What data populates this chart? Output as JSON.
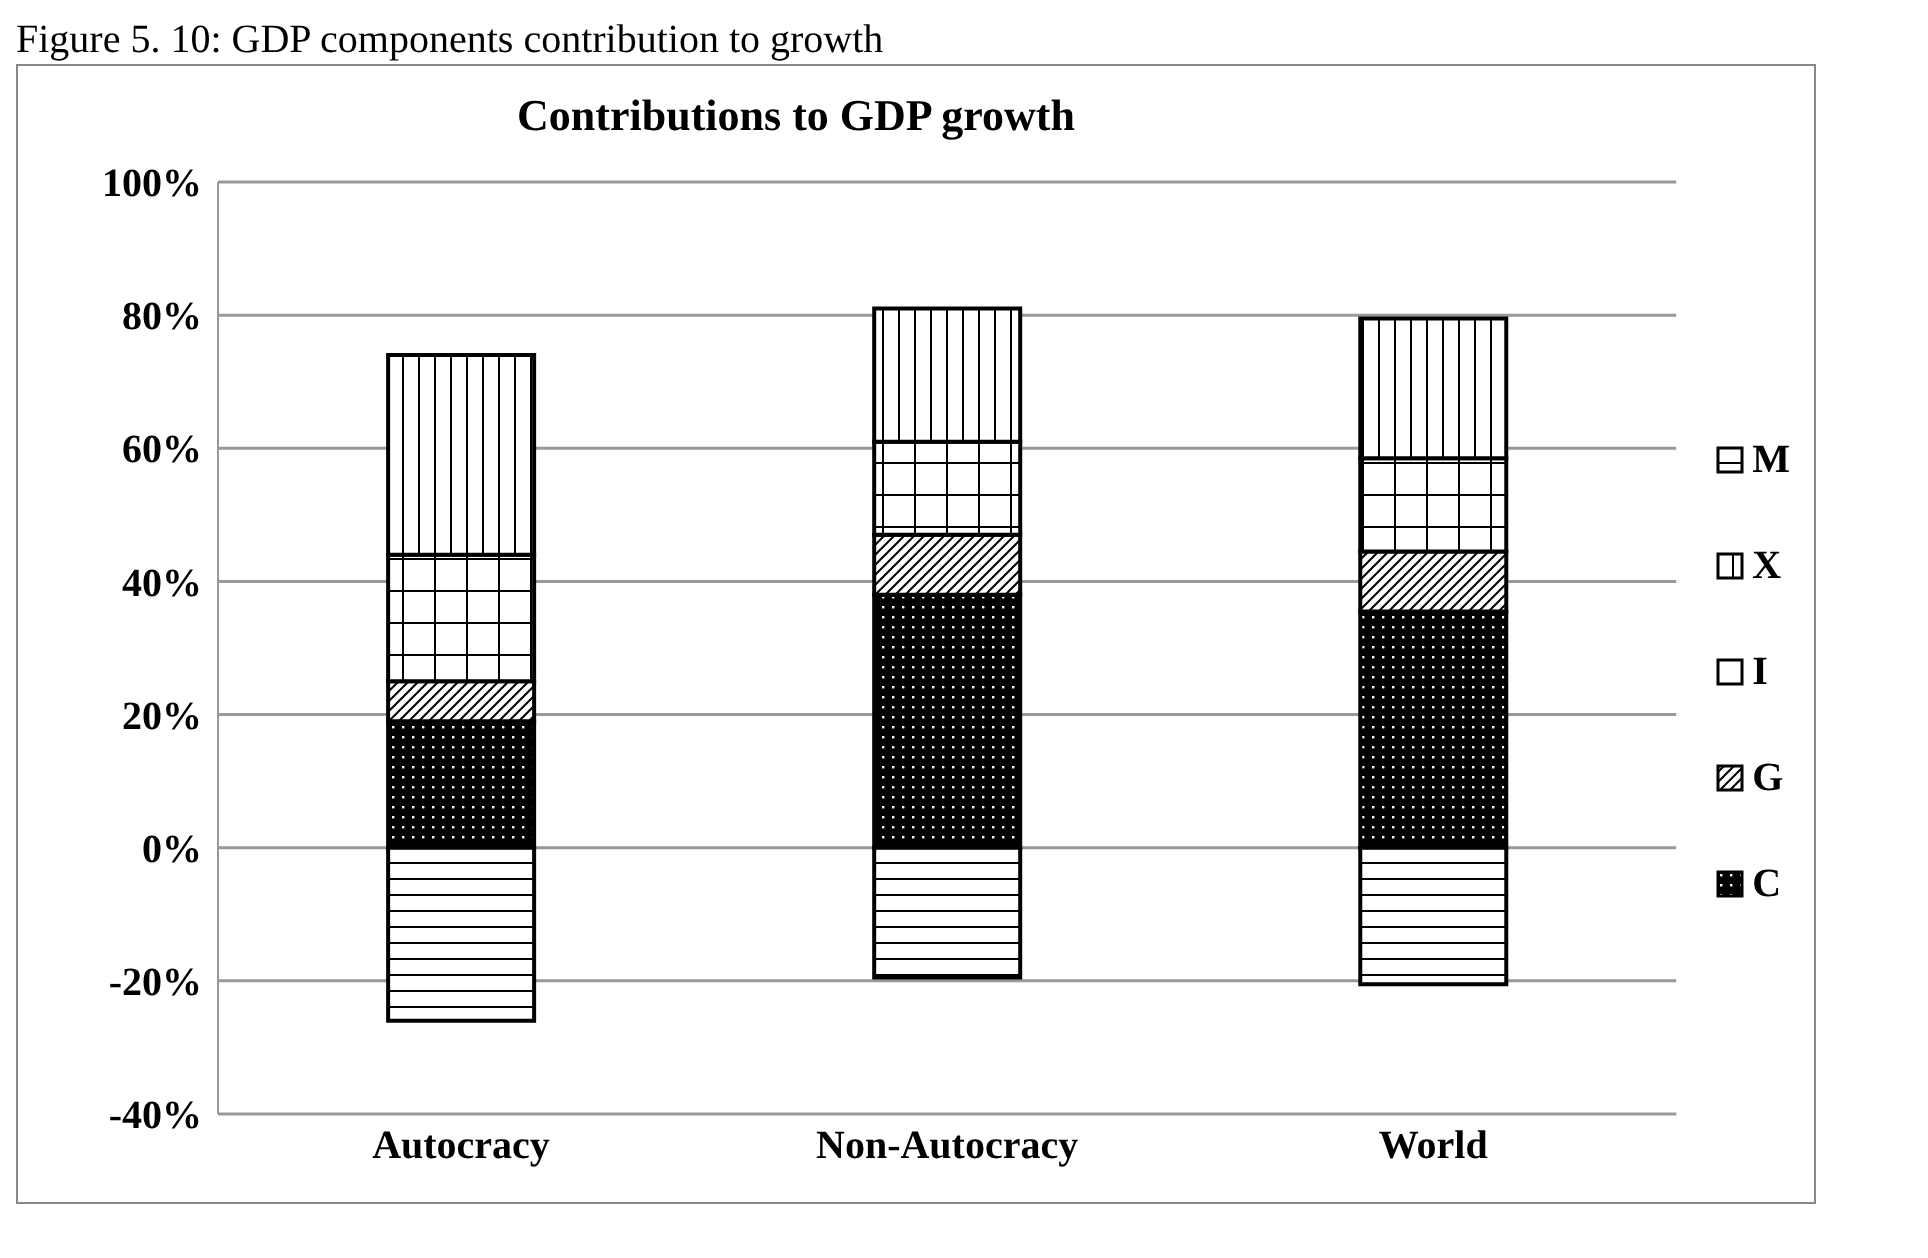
{
  "chart_data": {
    "type": "bar",
    "title": "Contributions to GDP growth",
    "annotations": [
      "Figure 5. 10: GDP components contribution to growth"
    ],
    "categories": [
      "Autocracy",
      "Non-Autocracy",
      "World"
    ],
    "stacked": true,
    "series": [
      {
        "name": "C",
        "color": "#000000",
        "values": [
          19,
          38,
          35.5
        ]
      },
      {
        "name": "G",
        "color": "#000000",
        "values": [
          6,
          9,
          9
        ]
      },
      {
        "name": "I",
        "color": "#000000",
        "values": [
          19,
          14,
          14
        ]
      },
      {
        "name": "X",
        "color": "#000000",
        "values": [
          30,
          20,
          21
        ]
      },
      {
        "name": "M",
        "color": "#000000",
        "values": [
          -26,
          -19.5,
          -20.5
        ]
      }
    ],
    "ylim": [
      -40,
      100
    ],
    "yticks": [
      {
        "value": -40,
        "label": "-40%"
      },
      {
        "value": -20,
        "label": "-20%"
      },
      {
        "value": 0,
        "label": "0%"
      },
      {
        "value": 20,
        "label": "20%"
      },
      {
        "value": 40,
        "label": "40%"
      },
      {
        "value": 60,
        "label": "60%"
      },
      {
        "value": 80,
        "label": "80%"
      },
      {
        "value": 100,
        "label": "100%"
      }
    ],
    "grid": "y",
    "legend": "right"
  }
}
